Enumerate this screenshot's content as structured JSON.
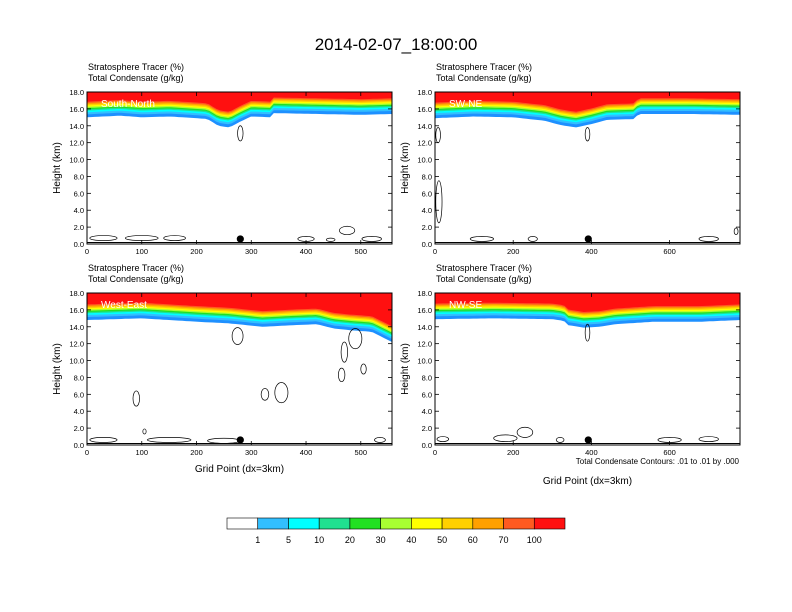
{
  "title": "2014-02-07_18:00:00",
  "colors": {
    "levels": [
      "#ffffff",
      "#1e90ff",
      "#32bfff",
      "#00ffff",
      "#20e090",
      "#22e022",
      "#a8ff32",
      "#ffff00",
      "#ffd000",
      "#ffa000",
      "#ff5a20",
      "#ff1010"
    ]
  },
  "colorbar": {
    "labels": [
      "1",
      "5",
      "10",
      "20",
      "30",
      "40",
      "50",
      "60",
      "70",
      "100"
    ]
  },
  "contour_note": "Total Condensate Contours: .01 to .01 by .000",
  "chart_data": [
    {
      "type": "heatmap",
      "panel_label": "South-North",
      "title_line1": "Stratosphere Tracer   (%)",
      "title_line2": "Total Condensate   (g/kg)",
      "ylabel": "Height (km)",
      "xlabel": "",
      "xlim": [
        0,
        557
      ],
      "ylim": [
        0,
        18
      ],
      "xticks": [
        0,
        100,
        200,
        300,
        400,
        500
      ],
      "yticks": [
        "0.0",
        "2.0",
        "4.0",
        "6.0",
        "8.0",
        "10.0",
        "12.0",
        "14.0",
        "16.0",
        "18.0"
      ],
      "marker_x": 280,
      "tracer_base_km": [
        [
          0,
          15.0
        ],
        [
          60,
          15.2
        ],
        [
          100,
          15.0
        ],
        [
          150,
          15.1
        ],
        [
          200,
          14.9
        ],
        [
          220,
          14.8
        ],
        [
          240,
          14.0
        ],
        [
          260,
          13.8
        ],
        [
          280,
          14.5
        ],
        [
          300,
          15.1
        ],
        [
          340,
          15.0
        ],
        [
          341,
          15.5
        ],
        [
          420,
          15.4
        ],
        [
          500,
          15.3
        ],
        [
          557,
          15.4
        ]
      ]
    },
    {
      "type": "heatmap",
      "panel_label": "SW-NE",
      "title_line1": "Stratosphere Tracer   (%)",
      "title_line2": "Total Condensate   (g/kg)",
      "ylabel": "Height (km)",
      "xlabel": "",
      "xlim": [
        0,
        780
      ],
      "ylim": [
        0,
        18
      ],
      "xticks": [
        0,
        200,
        400,
        600
      ],
      "yticks": [
        "0.0",
        "2.0",
        "4.0",
        "6.0",
        "8.0",
        "10.0",
        "12.0",
        "14.0",
        "16.0",
        "18.0"
      ],
      "marker_x": 392,
      "tracer_base_km": [
        [
          0,
          14.9
        ],
        [
          100,
          15.1
        ],
        [
          200,
          15.0
        ],
        [
          280,
          14.6
        ],
        [
          320,
          14.1
        ],
        [
          360,
          13.8
        ],
        [
          400,
          14.2
        ],
        [
          440,
          14.7
        ],
        [
          510,
          14.8
        ],
        [
          520,
          15.4
        ],
        [
          650,
          15.4
        ],
        [
          780,
          15.3
        ]
      ]
    },
    {
      "type": "heatmap",
      "panel_label": "West-East",
      "title_line1": "Stratosphere Tracer   (%)",
      "title_line2": "Total Condensate   (g/kg)",
      "ylabel": "Height (km)",
      "xlabel": "Grid Point (dx=3km)",
      "xlim": [
        0,
        557
      ],
      "ylim": [
        0,
        18
      ],
      "xticks": [
        0,
        100,
        200,
        300,
        400,
        500
      ],
      "yticks": [
        "0.0",
        "2.0",
        "4.0",
        "6.0",
        "8.0",
        "10.0",
        "12.0",
        "14.0",
        "16.0",
        "18.0"
      ],
      "marker_x": 280,
      "tracer_base_km": [
        [
          0,
          14.8
        ],
        [
          100,
          15.0
        ],
        [
          200,
          14.6
        ],
        [
          260,
          14.4
        ],
        [
          320,
          14.0
        ],
        [
          380,
          14.2
        ],
        [
          420,
          14.3
        ],
        [
          450,
          13.8
        ],
        [
          480,
          13.6
        ],
        [
          520,
          13.4
        ],
        [
          557,
          12.2
        ]
      ]
    },
    {
      "type": "heatmap",
      "panel_label": "NW-SE",
      "title_line1": "Stratosphere Tracer   (%)",
      "title_line2": "Total Condensate   (g/kg)",
      "ylabel": "Height (km)",
      "xlabel": "Grid Point (dx=3km)",
      "xlim": [
        0,
        780
      ],
      "ylim": [
        0,
        18
      ],
      "xticks": [
        0,
        200,
        400,
        600
      ],
      "yticks": [
        "0.0",
        "2.0",
        "4.0",
        "6.0",
        "8.0",
        "10.0",
        "12.0",
        "14.0",
        "16.0",
        "18.0"
      ],
      "marker_x": 392,
      "tracer_base_km": [
        [
          0,
          14.9
        ],
        [
          150,
          15.0
        ],
        [
          300,
          14.9
        ],
        [
          330,
          14.7
        ],
        [
          340,
          14.2
        ],
        [
          380,
          13.9
        ],
        [
          420,
          14.0
        ],
        [
          460,
          14.3
        ],
        [
          560,
          14.6
        ],
        [
          680,
          14.6
        ],
        [
          780,
          14.8
        ]
      ]
    }
  ]
}
